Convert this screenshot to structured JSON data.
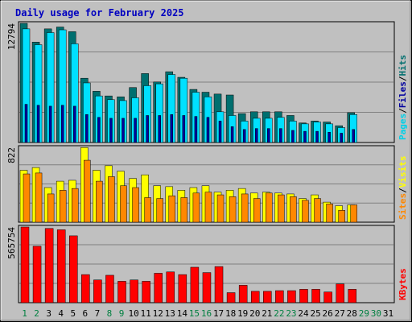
{
  "colors": {
    "background": "#c0c0c0",
    "panel_bg": "#c0c0c0",
    "grid": "#808080",
    "title": "#0000c0",
    "hits": "#00d0e8",
    "hits_dark": "#006f6f",
    "files": "#00e0ff",
    "pages": "#0000a0",
    "visits": "#ffff00",
    "sites": "#ff8800",
    "kbytes": "#ff0000",
    "weekday": "#000000",
    "weekend": "#008040"
  },
  "chart_data": {
    "type": "bar",
    "title": "Daily usage for February 2025",
    "categories": [
      "1",
      "2",
      "3",
      "4",
      "5",
      "6",
      "7",
      "8",
      "9",
      "10",
      "11",
      "12",
      "13",
      "14",
      "15",
      "16",
      "17",
      "18",
      "19",
      "20",
      "21",
      "22",
      "23",
      "24",
      "25",
      "26",
      "27",
      "28",
      "29",
      "30",
      "31"
    ],
    "weekend_days": [
      "1",
      "2",
      "8",
      "9",
      "15",
      "16",
      "22",
      "23",
      "29",
      "30"
    ],
    "panels": [
      {
        "id": "hits-panel",
        "max_label": "12794",
        "max": 12794,
        "legend": [
          {
            "text": "Pages",
            "color_key": "hits"
          },
          {
            "text": "/",
            "color_key": "weekday"
          },
          {
            "text": "Files",
            "color_key": "pages"
          },
          {
            "text": "/",
            "color_key": "weekday"
          },
          {
            "text": "Hits",
            "color_key": "hits_dark"
          }
        ],
        "series": [
          {
            "name": "Hits",
            "values": [
              12794,
              10780,
              12200,
              12400,
              11900,
              6900,
              5500,
              5000,
              4900,
              5900,
              7400,
              6500,
              7600,
              7000,
              5700,
              5400,
              5200,
              5100,
              3100,
              3300,
              3300,
              3300,
              2900,
              2100,
              2300,
              2200,
              1800,
              3200,
              null,
              null,
              null
            ]
          },
          {
            "name": "Files",
            "values": [
              12200,
              10500,
              11800,
              12100,
              10600,
              6400,
              5000,
              4600,
              4500,
              4800,
              6100,
              6300,
              7300,
              6900,
              5400,
              4900,
              3300,
              2900,
              2300,
              2600,
              2600,
              2700,
              2300,
              2000,
              2200,
              2000,
              1600,
              3000,
              null,
              null,
              null
            ]
          },
          {
            "name": "Pages",
            "values": [
              4100,
              4000,
              3900,
              4000,
              3900,
              3000,
              2700,
              2600,
              2600,
              2600,
              2900,
              2900,
              3000,
              2900,
              2800,
              2700,
              2300,
              1700,
              1400,
              1500,
              1500,
              1500,
              1300,
              1200,
              1200,
              1100,
              1000,
              1400,
              null,
              null,
              null
            ]
          }
        ]
      },
      {
        "id": "visits-panel",
        "max_label": "822",
        "max": 822,
        "legend": [
          {
            "text": "Sites",
            "color_key": "sites"
          },
          {
            "text": "/",
            "color_key": "weekday"
          },
          {
            "text": "Visits",
            "color_key": "visits"
          }
        ],
        "series": [
          {
            "name": "Visits",
            "values": [
              570,
              600,
              380,
              450,
              460,
              820,
              570,
              620,
              560,
              480,
              520,
              400,
              390,
              350,
              380,
              400,
              330,
              350,
              370,
              320,
              330,
              320,
              310,
              260,
              300,
              220,
              180,
              190,
              null,
              null,
              null
            ]
          },
          {
            "name": "Sites",
            "values": [
              530,
              540,
              310,
              350,
              370,
              680,
              450,
              500,
              400,
              380,
              270,
              260,
              290,
              270,
              320,
              330,
              300,
              280,
              310,
              260,
              320,
              300,
              280,
              240,
              260,
              200,
              130,
              190,
              null,
              null,
              null
            ]
          }
        ]
      },
      {
        "id": "kbytes-panel",
        "max_label": "565754",
        "max": 565754,
        "legend": [
          {
            "text": "KBytes",
            "color_key": "kbytes"
          }
        ],
        "series": [
          {
            "name": "KBytes",
            "values": [
              565754,
              422000,
              555000,
              545000,
              500000,
              210000,
              170000,
              205000,
              160000,
              170000,
              160000,
              220000,
              230000,
              210000,
              265000,
              225000,
              270000,
              75000,
              130000,
              85000,
              85000,
              90000,
              90000,
              100000,
              100000,
              80000,
              140000,
              100000,
              null,
              null,
              null
            ]
          }
        ]
      }
    ]
  }
}
